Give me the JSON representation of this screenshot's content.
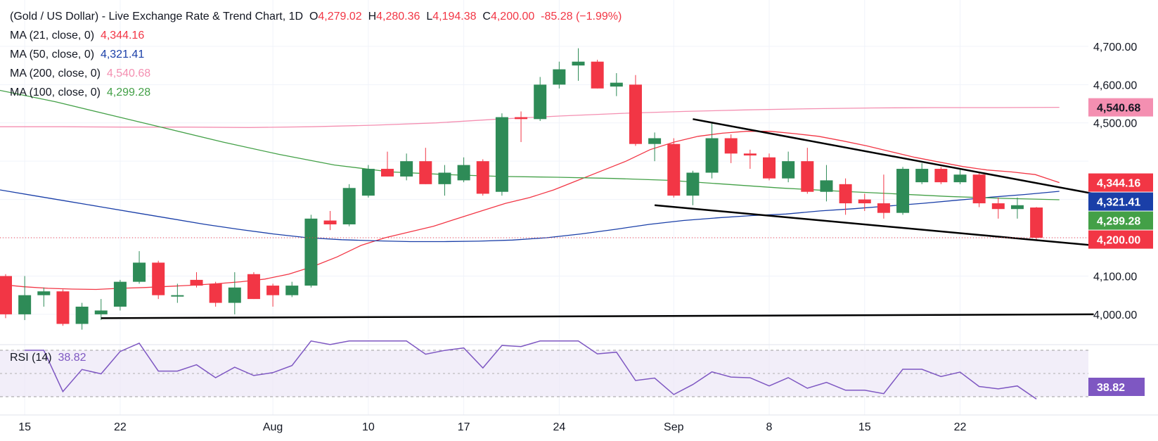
{
  "header": {
    "title": "(Gold / US Dollar) - Live Exchange Rate & Trend Chart, 1D",
    "open_label": "O",
    "open": "4,279.02",
    "high_label": "H",
    "high": "4,280.36",
    "low_label": "L",
    "low": "4,194.38",
    "close_label": "C",
    "close": "4,200.00",
    "change": "-85.28 (−1.99%)"
  },
  "legend": [
    {
      "label": "MA (21, close, 0)",
      "value": "4,344.16",
      "color": "#f23645"
    },
    {
      "label": "MA (50, close, 0)",
      "value": "4,321.41",
      "color": "#1a3fa8"
    },
    {
      "label": "MA (200, close, 0)",
      "value": "4,540.68",
      "color": "#f48fb1"
    },
    {
      "label": "MA (100, close, 0)",
      "value": "4,299.28",
      "color": "#43a047"
    }
  ],
  "rsi_label": {
    "label": "RSI (14)",
    "value": "38.82",
    "color": "#7e57c2"
  },
  "colors": {
    "up": "#2e8b57",
    "down": "#f23645",
    "price_line": "#f23645",
    "trend": "#000000"
  },
  "chart_data": {
    "type": "candlestick",
    "y_ticks": [
      "4,700.00",
      "4,600.00",
      "4,500.00",
      "4,100.00",
      "4,000.00"
    ],
    "y_range": [
      3930,
      4720
    ],
    "x_ticks": [
      {
        "label": "15",
        "index": 1
      },
      {
        "label": "22",
        "index": 6
      },
      {
        "label": "Aug",
        "index": 14
      },
      {
        "label": "10",
        "index": 19
      },
      {
        "label": "17",
        "index": 24
      },
      {
        "label": "24",
        "index": 29
      },
      {
        "label": "Sep",
        "index": 35
      },
      {
        "label": "8",
        "index": 40
      },
      {
        "label": "15",
        "index": 45
      },
      {
        "label": "22",
        "index": 50
      }
    ],
    "candles": [
      {
        "o": 4100,
        "h": 4105,
        "l": 3990,
        "c": 4000
      },
      {
        "o": 4000,
        "h": 4100,
        "l": 3985,
        "c": 4050
      },
      {
        "o": 4050,
        "h": 4070,
        "l": 4020,
        "c": 4060
      },
      {
        "o": 4060,
        "h": 4065,
        "l": 3970,
        "c": 3975
      },
      {
        "o": 3975,
        "h": 4030,
        "l": 3960,
        "c": 4020
      },
      {
        "o": 4000,
        "h": 4040,
        "l": 3985,
        "c": 4010
      },
      {
        "o": 4020,
        "h": 4090,
        "l": 4010,
        "c": 4085
      },
      {
        "o": 4085,
        "h": 4165,
        "l": 4080,
        "c": 4135
      },
      {
        "o": 4135,
        "h": 4140,
        "l": 4040,
        "c": 4050
      },
      {
        "o": 4050,
        "h": 4080,
        "l": 4030,
        "c": 4050
      },
      {
        "o": 4090,
        "h": 4110,
        "l": 4070,
        "c": 4075
      },
      {
        "o": 4080,
        "h": 4085,
        "l": 4020,
        "c": 4030
      },
      {
        "o": 4030,
        "h": 4110,
        "l": 4000,
        "c": 4070
      },
      {
        "o": 4105,
        "h": 4110,
        "l": 4040,
        "c": 4040
      },
      {
        "o": 4075,
        "h": 4080,
        "l": 4020,
        "c": 4050
      },
      {
        "o": 4050,
        "h": 4085,
        "l": 4045,
        "c": 4075
      },
      {
        "o": 4075,
        "h": 4260,
        "l": 4070,
        "c": 4250
      },
      {
        "o": 4245,
        "h": 4270,
        "l": 4220,
        "c": 4235
      },
      {
        "o": 4235,
        "h": 4340,
        "l": 4230,
        "c": 4330
      },
      {
        "o": 4310,
        "h": 4390,
        "l": 4305,
        "c": 4380
      },
      {
        "o": 4380,
        "h": 4425,
        "l": 4360,
        "c": 4360
      },
      {
        "o": 4360,
        "h": 4420,
        "l": 4350,
        "c": 4400
      },
      {
        "o": 4400,
        "h": 4435,
        "l": 4340,
        "c": 4340
      },
      {
        "o": 4340,
        "h": 4390,
        "l": 4310,
        "c": 4370
      },
      {
        "o": 4350,
        "h": 4410,
        "l": 4345,
        "c": 4390
      },
      {
        "o": 4400,
        "h": 4405,
        "l": 4310,
        "c": 4315
      },
      {
        "o": 4320,
        "h": 4525,
        "l": 4310,
        "c": 4515
      },
      {
        "o": 4515,
        "h": 4530,
        "l": 4450,
        "c": 4510
      },
      {
        "o": 4510,
        "h": 4620,
        "l": 4505,
        "c": 4600
      },
      {
        "o": 4600,
        "h": 4660,
        "l": 4590,
        "c": 4640
      },
      {
        "o": 4650,
        "h": 4695,
        "l": 4610,
        "c": 4660
      },
      {
        "o": 4660,
        "h": 4665,
        "l": 4590,
        "c": 4590
      },
      {
        "o": 4595,
        "h": 4630,
        "l": 4570,
        "c": 4605
      },
      {
        "o": 4600,
        "h": 4625,
        "l": 4440,
        "c": 4445
      },
      {
        "o": 4445,
        "h": 4475,
        "l": 4400,
        "c": 4460
      },
      {
        "o": 4445,
        "h": 4460,
        "l": 4305,
        "c": 4310
      },
      {
        "o": 4310,
        "h": 4375,
        "l": 4285,
        "c": 4370
      },
      {
        "o": 4370,
        "h": 4500,
        "l": 4355,
        "c": 4460
      },
      {
        "o": 4460,
        "h": 4470,
        "l": 4395,
        "c": 4420
      },
      {
        "o": 4420,
        "h": 4430,
        "l": 4380,
        "c": 4415
      },
      {
        "o": 4410,
        "h": 4420,
        "l": 4350,
        "c": 4355
      },
      {
        "o": 4355,
        "h": 4425,
        "l": 4345,
        "c": 4400
      },
      {
        "o": 4400,
        "h": 4435,
        "l": 4315,
        "c": 4320
      },
      {
        "o": 4320,
        "h": 4390,
        "l": 4295,
        "c": 4350
      },
      {
        "o": 4340,
        "h": 4355,
        "l": 4260,
        "c": 4290
      },
      {
        "o": 4300,
        "h": 4315,
        "l": 4270,
        "c": 4290
      },
      {
        "o": 4290,
        "h": 4365,
        "l": 4250,
        "c": 4265
      },
      {
        "o": 4265,
        "h": 4385,
        "l": 4260,
        "c": 4380
      },
      {
        "o": 4345,
        "h": 4395,
        "l": 4340,
        "c": 4380
      },
      {
        "o": 4380,
        "h": 4385,
        "l": 4340,
        "c": 4345
      },
      {
        "o": 4345,
        "h": 4380,
        "l": 4340,
        "c": 4365
      },
      {
        "o": 4365,
        "h": 4370,
        "l": 4280,
        "c": 4290
      },
      {
        "o": 4290,
        "h": 4305,
        "l": 4250,
        "c": 4275
      },
      {
        "o": 4275,
        "h": 4305,
        "l": 4250,
        "c": 4285
      },
      {
        "o": 4279.02,
        "h": 4280.36,
        "l": 4194.38,
        "c": 4200
      }
    ],
    "ma": [
      {
        "name": "MA (21, close, 0)",
        "color": "#f23645",
        "values": [
          4078,
          4072,
          4068,
          4066,
          4065,
          4068,
          4070,
          4073,
          4076,
          4080,
          4085,
          4092,
          4105,
          4125,
          4150,
          4180,
          4200,
          4215,
          4230,
          4250,
          4270,
          4290,
          4305,
          4325,
          4350,
          4375,
          4400,
          4430,
          4450,
          4465,
          4473,
          4478,
          4478,
          4472,
          4465,
          4453,
          4440,
          4425,
          4410,
          4398,
          4386,
          4377,
          4372,
          4365,
          4344.16
        ]
      },
      {
        "name": "MA (50, close, 0)",
        "color": "#1a3fa8",
        "values": [
          4325,
          4310,
          4295,
          4280,
          4265,
          4250,
          4235,
          4222,
          4210,
          4200,
          4195,
          4192,
          4190,
          4190,
          4191,
          4194,
          4200,
          4210,
          4222,
          4235,
          4245,
          4252,
          4258,
          4262,
          4270,
          4276,
          4283,
          4290,
          4298,
          4306,
          4313,
          4321.41
        ]
      },
      {
        "name": "MA (200, close, 0)",
        "color": "#f48fb1",
        "values": [
          4490,
          4490,
          4489,
          4489,
          4488,
          4490,
          4494,
          4500,
          4510,
          4518,
          4525,
          4530,
          4534,
          4537,
          4539,
          4540,
          4540,
          4540.68
        ]
      },
      {
        "name": "MA (100, close, 0)",
        "color": "#43a047",
        "values": [
          4585,
          4555,
          4520,
          4485,
          4450,
          4418,
          4390,
          4372,
          4365,
          4360,
          4358,
          4355,
          4350,
          4340,
          4330,
          4322,
          4315,
          4308,
          4303,
          4299.28
        ]
      }
    ],
    "trendlines": [
      {
        "from": [
          5,
          3990
        ],
        "to": [
          57,
          4000
        ]
      },
      {
        "from": [
          36,
          4510
        ],
        "to": [
          57,
          4315
        ]
      },
      {
        "from": [
          34,
          4285
        ],
        "to": [
          57,
          4180
        ]
      }
    ],
    "last_price": "4,200.00",
    "rsi": {
      "name": "RSI (14)",
      "last": "38.82",
      "range": [
        0,
        100
      ],
      "upper": 70,
      "lower": 30
    }
  }
}
